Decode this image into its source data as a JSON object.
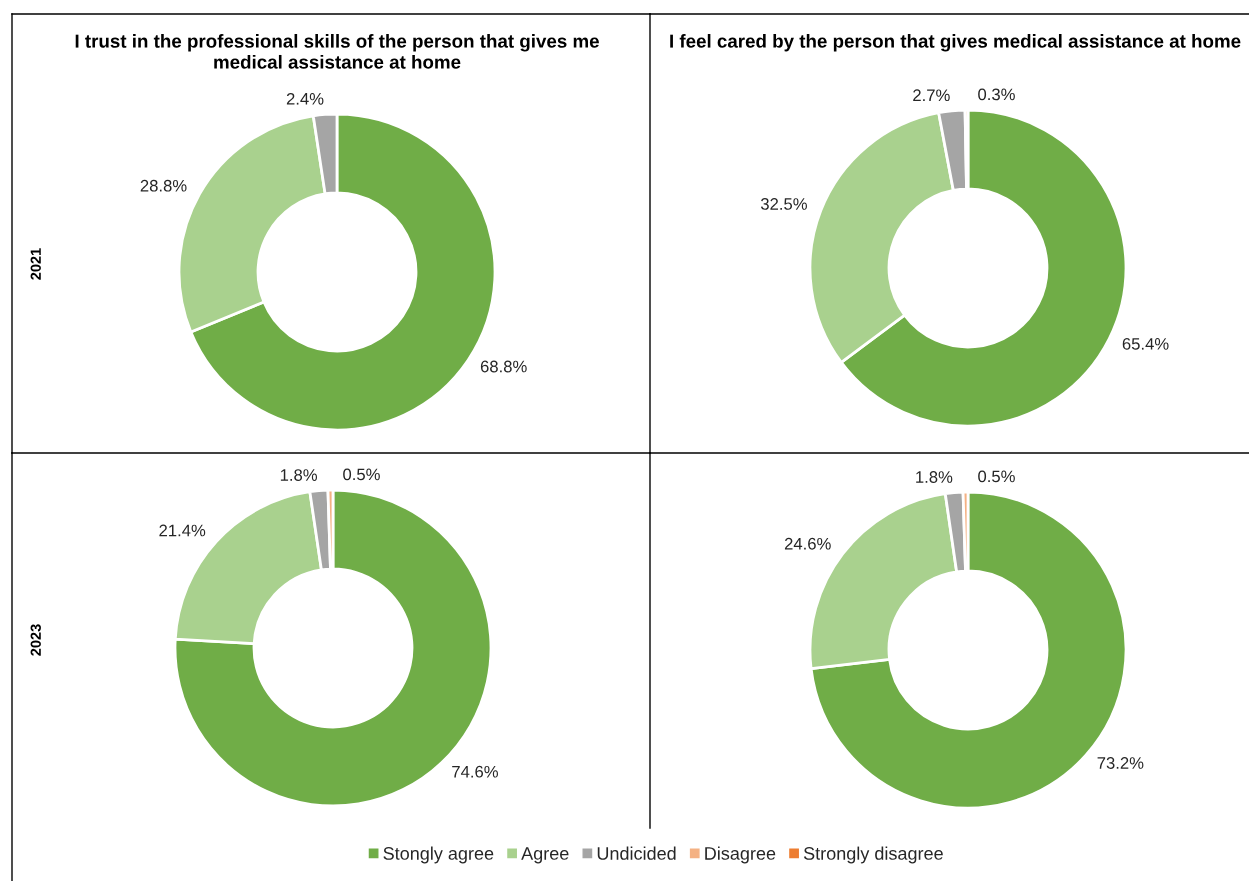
{
  "chart_data": [
    {
      "type": "donut",
      "title": "I trust in the professional skills of the person that gives me\nmedical assistance at home",
      "ylabel": "2021",
      "categories": [
        "Stongly agree",
        "Agree",
        "Undicided",
        "Disagree",
        "Strongly disagree"
      ],
      "values": [
        68.8,
        28.8,
        2.4,
        null,
        null
      ],
      "colors": [
        "#70ad47",
        "#a9d18e",
        "#a5a5a5",
        "#f4b183",
        "#ed7d31"
      ],
      "value_labels": [
        "68.8%",
        "28.8%",
        "2.4%",
        null,
        null
      ],
      "legend": "bottom"
    },
    {
      "type": "donut",
      "title": "I feel cared by the person that gives medical assistance at home",
      "values": [
        65.4,
        32.5,
        2.7,
        0.3,
        null
      ],
      "colors": [
        "#70ad47",
        "#a9d18e",
        "#a5a5a5",
        "#f4b183",
        "#ed7d31"
      ],
      "value_labels": [
        "65.4%",
        "32.5%",
        "2.7%",
        "0.3%",
        null
      ]
    },
    {
      "type": "donut",
      "ylabel": "2023",
      "values": [
        74.6,
        21.4,
        1.8,
        0.5,
        null
      ],
      "colors": [
        "#70ad47",
        "#a9d18e",
        "#a5a5a5",
        "#f4b183",
        "#ed7d31"
      ],
      "value_labels": [
        "74.6%",
        "21.4%",
        "1.8%",
        "0.5%",
        null
      ]
    },
    {
      "type": "donut",
      "values": [
        73.2,
        24.6,
        1.8,
        0.5,
        null
      ],
      "colors": [
        "#70ad47",
        "#a9d18e",
        "#a5a5a5",
        "#f4b183",
        "#ed7d31"
      ],
      "value_labels": [
        "73.2%",
        "24.6%",
        "1.8%",
        "0.5%",
        null
      ]
    }
  ]
}
